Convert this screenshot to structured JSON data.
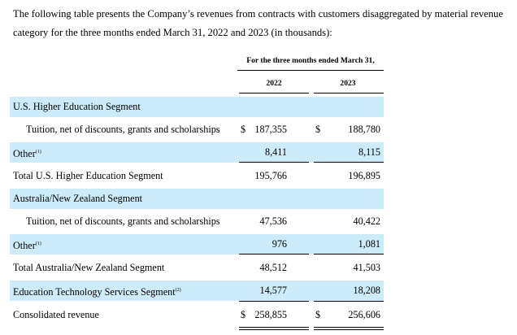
{
  "intro": "The following table presents the Company’s revenues from contracts with customers disaggregated by material revenue category for the three months ended March 31, 2022 and 2023 (in thousands):",
  "header": {
    "period": "For the three months ended March 31,",
    "years": [
      "2022",
      "2023"
    ]
  },
  "rows": [
    {
      "label": "U.S. Higher Education Segment",
      "footnote": "",
      "dollar1": "",
      "v2022": "",
      "dollar2": "",
      "v2023": ""
    },
    {
      "label": "Tuition, net of discounts, grants and scholarships",
      "footnote": "",
      "dollar1": "$",
      "v2022": "187,355",
      "dollar2": "$",
      "v2023": "188,780"
    },
    {
      "label": "Other",
      "footnote": "(1)",
      "dollar1": "",
      "v2022": "8,411",
      "dollar2": "",
      "v2023": "8,115"
    },
    {
      "label": "Total U.S. Higher Education Segment",
      "footnote": "",
      "dollar1": "",
      "v2022": "195,766",
      "dollar2": "",
      "v2023": "196,895"
    },
    {
      "label": "Australia/New Zealand Segment",
      "footnote": "",
      "dollar1": "",
      "v2022": "",
      "dollar2": "",
      "v2023": ""
    },
    {
      "label": "Tuition, net of discounts, grants and scholarships",
      "footnote": "",
      "dollar1": "",
      "v2022": "47,536",
      "dollar2": "",
      "v2023": "40,422"
    },
    {
      "label": "Other",
      "footnote": "(1)",
      "dollar1": "",
      "v2022": "976",
      "dollar2": "",
      "v2023": "1,081"
    },
    {
      "label": "Total Australia/New Zealand Segment",
      "footnote": "",
      "dollar1": "",
      "v2022": "48,512",
      "dollar2": "",
      "v2023": "41,503"
    },
    {
      "label": "Education Technology Services Segment",
      "footnote": "(2)",
      "dollar1": "",
      "v2022": "14,577",
      "dollar2": "",
      "v2023": "18,208"
    },
    {
      "label": "Consolidated revenue",
      "footnote": "",
      "dollar1": "$",
      "v2022": "258,855",
      "dollar2": "$",
      "v2023": "256,606"
    }
  ]
}
